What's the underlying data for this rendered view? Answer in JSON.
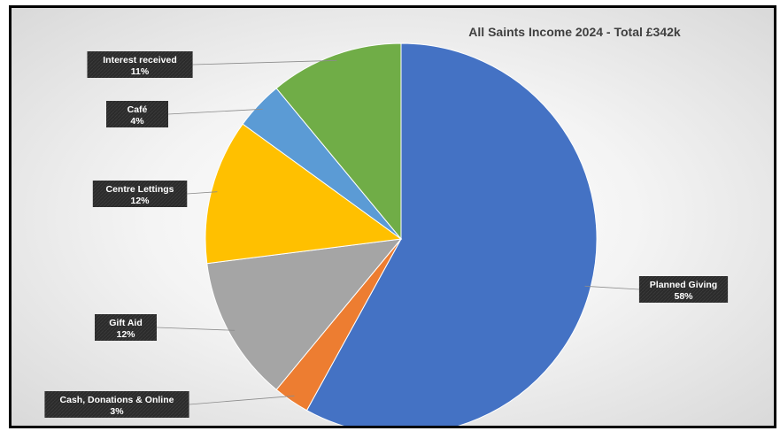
{
  "chart_data": {
    "type": "pie",
    "title": "All Saints Income 2024 - Total £342k",
    "slices": [
      {
        "label": "Planned Giving",
        "value": 58,
        "value_label": "58%",
        "color": "#4472c4"
      },
      {
        "label": "Cash, Donations & Online",
        "value": 3,
        "value_label": "3%",
        "color": "#ed7d31"
      },
      {
        "label": "Gift Aid",
        "value": 12,
        "value_label": "12%",
        "color": "#a5a5a5"
      },
      {
        "label": "Centre Lettings",
        "value": 12,
        "value_label": "12%",
        "color": "#ffc000"
      },
      {
        "label": "Café",
        "value": 4,
        "value_label": "4%",
        "color": "#5b9bd5"
      },
      {
        "label": "Interest received",
        "value": 11,
        "value_label": "11%",
        "color": "#70ad47"
      }
    ],
    "start_angle": "12 o'clock",
    "direction": "clockwise",
    "data_label_style": "dark boxes with leader lines"
  }
}
